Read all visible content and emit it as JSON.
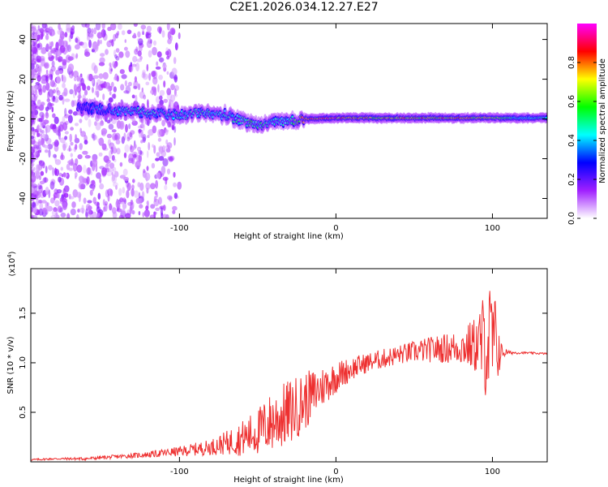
{
  "title": "C2E1.2026.034.12.27.E27",
  "chart_data": [
    {
      "type": "heatmap",
      "xlabel": "Height of straight line (km)",
      "ylabel": "Frequency (Hz)",
      "xlim": [
        -195,
        135
      ],
      "ylim": [
        -50,
        48
      ],
      "x_ticks": [
        -100,
        0,
        100
      ],
      "x_tick_labels": [
        "-100",
        "0",
        "100"
      ],
      "y_ticks": [
        -40,
        -20,
        0,
        20,
        40
      ],
      "y_tick_labels": [
        "-40",
        "-20",
        "0",
        "20",
        "40"
      ],
      "colorbar": {
        "label": "Normalized spectral amplitude",
        "range": [
          0,
          1
        ],
        "ticks": [
          0.0,
          0.2,
          0.4,
          0.6,
          0.8
        ],
        "tick_labels": [
          "0.0",
          "0.2",
          "0.4",
          "0.6",
          "0.8"
        ],
        "colormap": [
          "#ffffff",
          "#a020ff",
          "#0000ff",
          "#00ffff",
          "#00ff00",
          "#ffff00",
          "#ff0000",
          "#ff00ff"
        ]
      },
      "ridge": [
        {
          "x": -165,
          "f": 6,
          "a": 0.25
        },
        {
          "x": -150,
          "f": 5,
          "a": 0.35
        },
        {
          "x": -135,
          "f": 4,
          "a": 0.45
        },
        {
          "x": -120,
          "f": 3,
          "a": 0.45
        },
        {
          "x": -100,
          "f": 2,
          "a": 0.45
        },
        {
          "x": -85,
          "f": 3,
          "a": 0.45
        },
        {
          "x": -70,
          "f": 2,
          "a": 0.45
        },
        {
          "x": -60,
          "f": -1,
          "a": 0.5
        },
        {
          "x": -50,
          "f": -3,
          "a": 0.5
        },
        {
          "x": -40,
          "f": -2,
          "a": 0.45
        },
        {
          "x": -30,
          "f": -1,
          "a": 0.45
        },
        {
          "x": -20,
          "f": 0,
          "a": 0.8
        },
        {
          "x": 0,
          "f": 0.5,
          "a": 0.85
        },
        {
          "x": 20,
          "f": 0.5,
          "a": 0.75
        },
        {
          "x": 40,
          "f": 0.5,
          "a": 0.75
        },
        {
          "x": 60,
          "f": 0.5,
          "a": 0.75
        },
        {
          "x": 80,
          "f": 0.5,
          "a": 0.75
        },
        {
          "x": 100,
          "f": 0.5,
          "a": 0.7
        },
        {
          "x": 115,
          "f": 0.5,
          "a": 0.45
        },
        {
          "x": 135,
          "f": 0.5,
          "a": 0.45
        }
      ]
    },
    {
      "type": "line",
      "xlabel": "Height of straight line (km)",
      "ylabel": "SNR (10 * v/v)",
      "y_multiplier": "(x10",
      "y_multiplier_exp": "4",
      "y_multiplier_close": ")",
      "xlim": [
        -195,
        135
      ],
      "ylim": [
        0,
        1.95
      ],
      "x_ticks": [
        -100,
        0,
        100
      ],
      "x_tick_labels": [
        "-100",
        "0",
        "100"
      ],
      "y_ticks": [
        0.5,
        1.0,
        1.5
      ],
      "y_tick_labels": [
        "0.5",
        "1.0",
        "1.5"
      ],
      "color": "#ee3030",
      "series": [
        {
          "name": "SNR",
          "x": [
            -195,
            -180,
            -160,
            -140,
            -120,
            -100,
            -80,
            -70,
            -60,
            -50,
            -40,
            -30,
            -20,
            -10,
            0,
            10,
            20,
            30,
            40,
            50,
            60,
            70,
            80,
            90,
            95,
            100,
            103,
            106,
            110,
            120,
            135
          ],
          "y": [
            0.02,
            0.03,
            0.03,
            0.05,
            0.07,
            0.1,
            0.14,
            0.18,
            0.22,
            0.28,
            0.38,
            0.46,
            0.58,
            0.72,
            0.84,
            0.93,
            0.99,
            1.03,
            1.07,
            1.1,
            1.12,
            1.13,
            1.14,
            1.15,
            1.15,
            1.14,
            1.12,
            1.1,
            1.1,
            1.1,
            1.09
          ],
          "noise": [
            0.01,
            0.01,
            0.015,
            0.02,
            0.03,
            0.05,
            0.08,
            0.12,
            0.18,
            0.24,
            0.32,
            0.34,
            0.3,
            0.22,
            0.16,
            0.12,
            0.1,
            0.1,
            0.1,
            0.11,
            0.13,
            0.15,
            0.18,
            0.3,
            0.55,
            0.65,
            0.4,
            0.08,
            0.02,
            0.01,
            0.01
          ]
        }
      ]
    }
  ]
}
